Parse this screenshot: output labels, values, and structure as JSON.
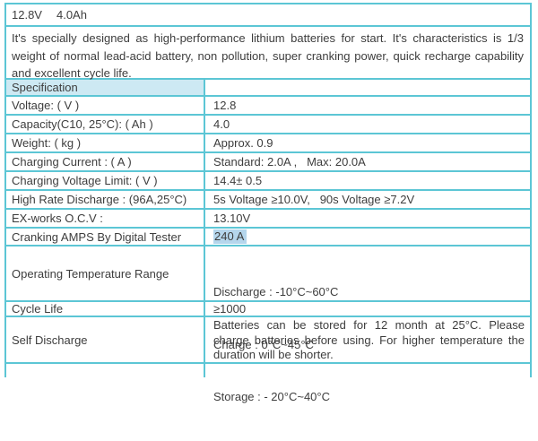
{
  "colors": {
    "border": "#5cc6d5",
    "header_bg": "#cde9f3",
    "highlight_bg": "#b5d6ec",
    "text": "#3d3d3d"
  },
  "header": {
    "voltage": "12.8V",
    "capacity": "4.0Ah",
    "description": "It's specially designed as high-performance lithium batteries for start. It's characteristics is 1/3 weight of normal lead-acid battery, non pollution, super cranking power, quick recharge capability and excellent cycle life."
  },
  "table": {
    "section_header": "Specification",
    "rows": [
      {
        "label": "Voltage:  ( V )",
        "value": "12.8"
      },
      {
        "label": "Capacity(C10, 25°C):  ( Ah )",
        "value": "4.0"
      },
      {
        "label": "Weight:  ( kg )",
        "value": "Approx. 0.9"
      },
      {
        "label": "Charging Current  :  ( A )",
        "value": "Standard: 2.0A ,   Max: 20.0A"
      },
      {
        "label": "Charging Voltage Limit:  ( V )",
        "value": "14.4± 0.5"
      },
      {
        "label": "High Rate Discharge : (96A,25°C)",
        "value": "5s Voltage ≥10.0V,   90s Voltage ≥7.2V"
      },
      {
        "label": "EX-works O.C.V :",
        "value": "13.10V"
      },
      {
        "label": "Cranking AMPS By Digital Tester",
        "value": "240 A",
        "highlighted": true
      },
      {
        "label": "Operating Temperature Range",
        "value_lines": [
          "Discharge : -10°C~60°C",
          "Charge : 0°C~45°C",
          "Storage : - 20°C~40°C"
        ]
      },
      {
        "label": "Cycle Life",
        "value": "≥1000"
      },
      {
        "label": "Self Discharge",
        "value": "Batteries can be stored for 12 month at 25°C. Please charge batteries before using. For higher temperature the duration will be shorter."
      }
    ]
  }
}
